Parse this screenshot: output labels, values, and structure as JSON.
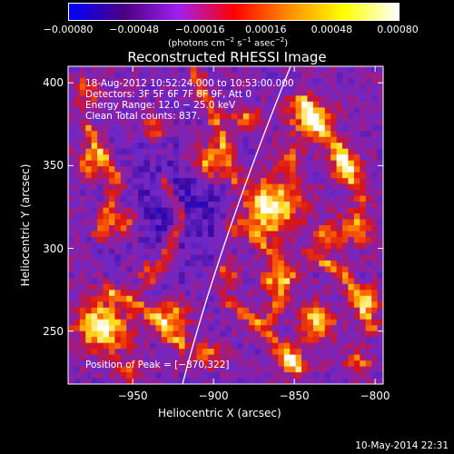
{
  "colorbar": {
    "tick_labels": [
      "−0.00080",
      "−0.00048",
      "−0.00016",
      "0.00016",
      "0.00048",
      "0.00080"
    ],
    "units_text": "(photons cm",
    "units_exp1": "−2",
    "units_mid": " s",
    "units_exp2": "−1",
    "units_mid2": " asec",
    "units_exp3": "−2",
    "units_close": ")",
    "colors": [
      "#0000ff",
      "#4b0082",
      "#a020f0",
      "#ff0000",
      "#ff8c00",
      "#ffff00",
      "#ffffff"
    ]
  },
  "title": "Reconstructed RHESSI Image",
  "info": {
    "time": "18-Aug-2012 10:52:24.000 to 10:53:00.000",
    "detectors": "Detectors: 3F 5F 6F 7F 8F 9F, Att 0",
    "energy": "Energy Range: 12.0 − 25.0 keV",
    "clean": "Clean    Total counts: 837."
  },
  "peak_text": "Position of Peak = [−870,322]",
  "axes": {
    "xlabel": "Heliocentric X (arcsec)",
    "ylabel": "Heliocentric Y (arcsec)",
    "x_ticks": [
      {
        "value": -950,
        "label": "−950"
      },
      {
        "value": -900,
        "label": "−900"
      },
      {
        "value": -850,
        "label": "−850"
      },
      {
        "value": -800,
        "label": "−800"
      }
    ],
    "y_ticks": [
      {
        "value": 250,
        "label": "250"
      },
      {
        "value": 300,
        "label": "300"
      },
      {
        "value": 350,
        "label": "350"
      },
      {
        "value": 400,
        "label": "400"
      }
    ],
    "xlim": [
      -990,
      -795
    ],
    "ylim": [
      218,
      410
    ]
  },
  "footer": "10-May-2014 22:31"
}
